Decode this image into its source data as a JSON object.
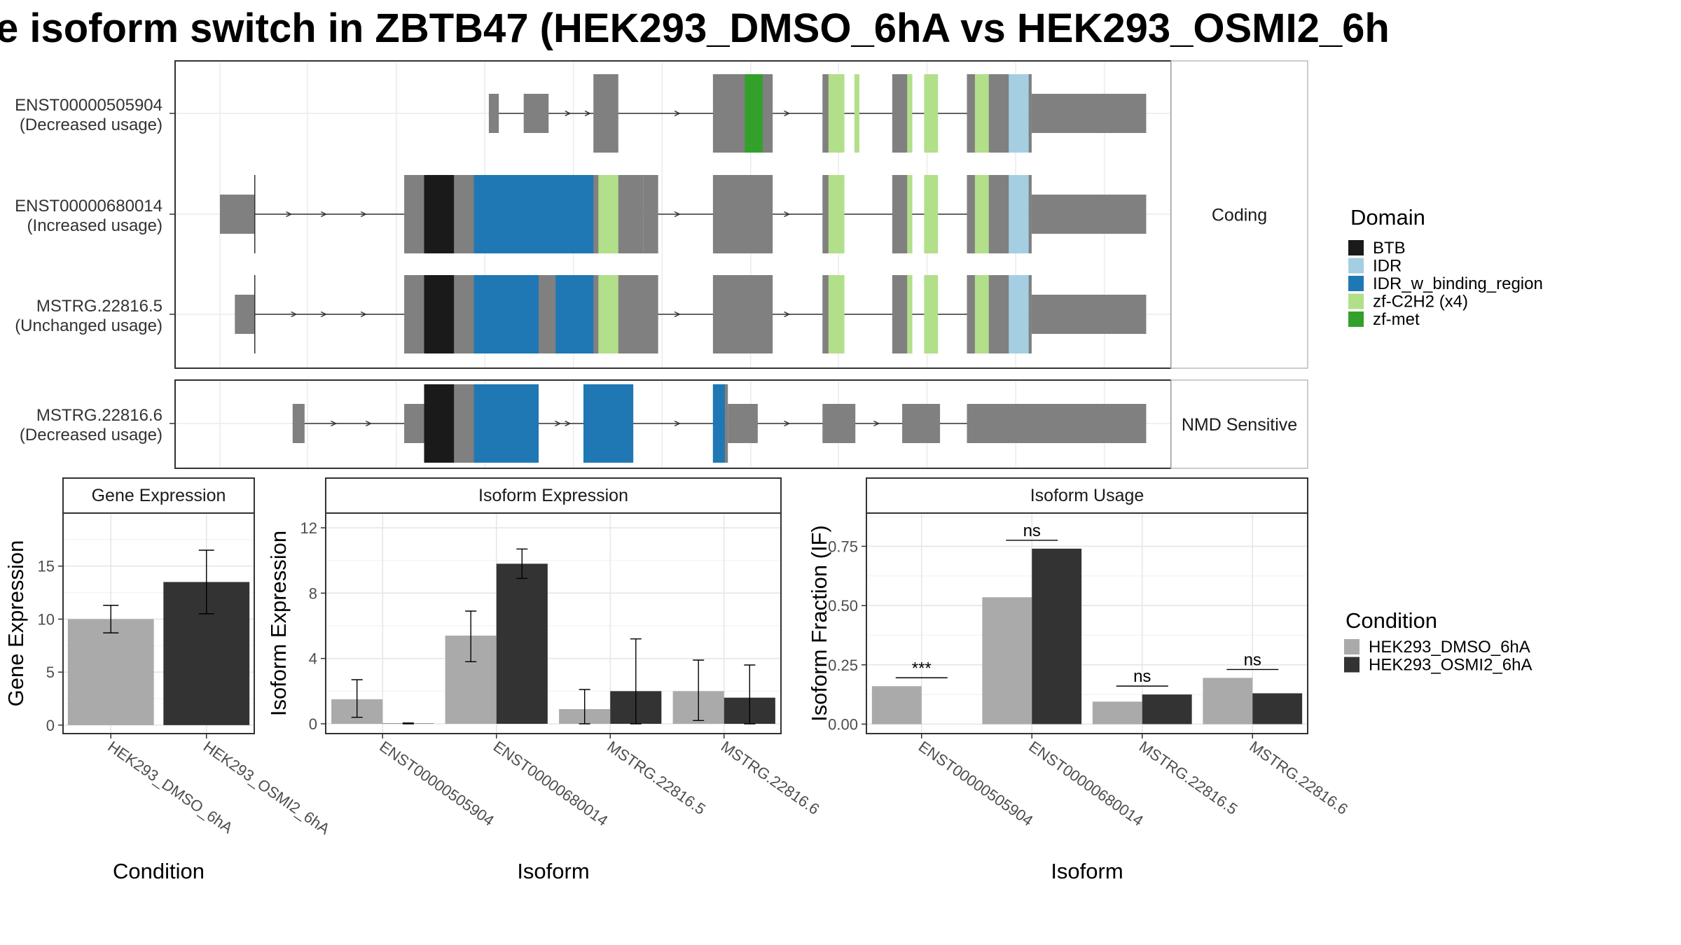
{
  "title": "e isoform switch in ZBTB47 (HEK293_DMSO_6hA vs HEK293_OSMI2_6h",
  "colors": {
    "exon": "#808080",
    "BTB": "#1a1a1a",
    "IDR": "#a6cee3",
    "IDR_w_binding_region": "#1f78b4",
    "zf-C2H2 (x4)": "#b2df8a",
    "zf-met": "#33a02c",
    "HEK293_DMSO_6hA": "#aaaaaa",
    "HEK293_OSMI2_6hA": "#333333"
  },
  "structure": {
    "xlim": [
      0,
      100
    ],
    "facets": [
      {
        "label": "Coding",
        "isoforms": [
          {
            "id": "ENST00000505904",
            "usage": "(Decreased usage)",
            "exons": [
              [
                31.5,
                32.5,
                "utr"
              ],
              [
                35,
                37.5,
                "utr"
              ],
              [
                42,
                44.5,
                "cds"
              ],
              [
                54,
                60,
                "cds"
              ],
              [
                65,
                66.5,
                "cds"
              ],
              [
                72,
                74,
                "cds"
              ],
              [
                79.5,
                81,
                "cds"
              ],
              [
                81,
                86,
                "cds"
              ],
              [
                86,
                97.5,
                "utr"
              ]
            ],
            "domains": [
              [
                57.2,
                59,
                "zf-met"
              ],
              [
                65.6,
                67.2,
                "zf-C2H2 (x4)"
              ],
              [
                68.2,
                68.7,
                "zf-C2H2 (x4)"
              ],
              [
                73.5,
                74,
                "zf-C2H2 (x4)"
              ],
              [
                75.2,
                76.6,
                "zf-C2H2 (x4)"
              ],
              [
                80.3,
                81.7,
                "zf-C2H2 (x4)"
              ],
              [
                83.7,
                85.7,
                "IDR"
              ]
            ],
            "arrows": [
              39.5,
              41.5,
              50.5,
              61.5
            ],
            "intron_tail": 36.5
          },
          {
            "id": "ENST00000680014",
            "usage": "(Increased usage)",
            "exons": [
              [
                4.5,
                8,
                "utr"
              ],
              [
                23,
                47,
                "cds"
              ],
              [
                47,
                48.5,
                "cds"
              ],
              [
                54,
                60,
                "cds"
              ],
              [
                65,
                66.5,
                "cds"
              ],
              [
                72,
                74,
                "cds"
              ],
              [
                79.5,
                81,
                "cds"
              ],
              [
                81,
                86,
                "cds"
              ],
              [
                86,
                97.5,
                "utr"
              ]
            ],
            "domains": [
              [
                25,
                28,
                "BTB"
              ],
              [
                30,
                42,
                "IDR_w_binding_region"
              ],
              [
                42.5,
                44.5,
                "zf-C2H2 (x4)"
              ],
              [
                65.6,
                67.2,
                "zf-C2H2 (x4)"
              ],
              [
                73.5,
                74,
                "zf-C2H2 (x4)"
              ],
              [
                75.2,
                76.6,
                "zf-C2H2 (x4)"
              ],
              [
                80.3,
                81.7,
                "zf-C2H2 (x4)"
              ],
              [
                83.7,
                85.7,
                "IDR"
              ]
            ],
            "arrows": [
              11.5,
              15,
              19,
              50.5,
              61.5
            ],
            "tss": 8
          },
          {
            "id": "MSTRG.22816.5",
            "usage": "(Unchanged usage)",
            "exons": [
              [
                6,
                8,
                "utr"
              ],
              [
                23,
                48.5,
                "cds"
              ],
              [
                54,
                60,
                "cds"
              ],
              [
                65,
                66.5,
                "cds"
              ],
              [
                72,
                74,
                "cds"
              ],
              [
                79.5,
                81,
                "cds"
              ],
              [
                81,
                86,
                "cds"
              ],
              [
                86,
                97.5,
                "utr"
              ]
            ],
            "domains": [
              [
                25,
                28,
                "BTB"
              ],
              [
                30,
                36.5,
                "IDR_w_binding_region"
              ],
              [
                38.2,
                42,
                "IDR_w_binding_region"
              ],
              [
                42.5,
                44.5,
                "zf-C2H2 (x4)"
              ],
              [
                65.6,
                67.2,
                "zf-C2H2 (x4)"
              ],
              [
                73.5,
                74,
                "zf-C2H2 (x4)"
              ],
              [
                75.2,
                76.6,
                "zf-C2H2 (x4)"
              ],
              [
                80.3,
                81.7,
                "zf-C2H2 (x4)"
              ],
              [
                83.7,
                85.7,
                "IDR"
              ]
            ],
            "arrows": [
              12,
              15,
              19,
              50.5,
              61.5
            ],
            "tss": 8
          }
        ]
      },
      {
        "label": "NMD Sensitive",
        "isoforms": [
          {
            "id": "MSTRG.22816.6",
            "usage": "(Decreased usage)",
            "exons": [
              [
                11.8,
                13,
                "utr"
              ],
              [
                23,
                25,
                "utr"
              ],
              [
                25,
                36.5,
                "cds"
              ],
              [
                41,
                46,
                "cds"
              ],
              [
                54,
                55.5,
                "cds"
              ],
              [
                55.5,
                58.5,
                "utr"
              ],
              [
                65,
                68.3,
                "utr"
              ],
              [
                73,
                76.8,
                "utr"
              ],
              [
                79.5,
                97.5,
                "utr"
              ]
            ],
            "domains": [
              [
                25,
                28,
                "BTB"
              ],
              [
                30,
                36.5,
                "IDR_w_binding_region"
              ],
              [
                41,
                46,
                "IDR_w_binding_region"
              ],
              [
                54,
                55.2,
                "IDR_w_binding_region"
              ]
            ],
            "arrows": [
              16,
              19.5,
              38.5,
              39.5,
              50.5,
              61.5,
              70.5
            ]
          }
        ]
      }
    ]
  },
  "legend_domain": {
    "title": "Domain",
    "items": [
      "BTB",
      "IDR",
      "IDR_w_binding_region",
      "zf-C2H2 (x4)",
      "zf-met"
    ]
  },
  "legend_condition": {
    "title": "Condition",
    "items": [
      "HEK293_DMSO_6hA",
      "HEK293_OSMI2_6hA"
    ]
  },
  "chart_data": [
    {
      "type": "bar",
      "title": "Gene Expression",
      "xlabel": "Condition",
      "ylabel": "Gene Expression",
      "categories": [
        "HEK293_DMSO_6hA",
        "HEK293_OSMI2_6hA"
      ],
      "values": [
        10.0,
        13.5
      ],
      "errors": [
        [
          8.7,
          11.3
        ],
        [
          10.5,
          16.5
        ]
      ],
      "ylim": [
        -0.8,
        20
      ],
      "yticks": [
        0,
        5,
        10,
        15
      ]
    },
    {
      "type": "bar",
      "title": "Isoform Expression",
      "xlabel": "Isoform",
      "ylabel": "Isoform Expression",
      "categories": [
        "ENST00000505904",
        "ENST00000680014",
        "MSTRG.22816.5",
        "MSTRG.22816.6"
      ],
      "series": [
        {
          "name": "HEK293_DMSO_6hA",
          "values": [
            1.5,
            5.4,
            0.9,
            2.0
          ],
          "errors": [
            [
              0.4,
              2.7
            ],
            [
              3.8,
              6.9
            ],
            [
              0.0,
              2.1
            ],
            [
              0.2,
              3.9
            ]
          ]
        },
        {
          "name": "HEK293_OSMI2_6hA",
          "values": [
            0.02,
            9.8,
            2.0,
            1.6
          ],
          "errors": [
            [
              0.0,
              0.05
            ],
            [
              8.9,
              10.7
            ],
            [
              0.0,
              5.2
            ],
            [
              0.0,
              3.6
            ]
          ]
        }
      ],
      "ylim": [
        -0.6,
        12.9
      ],
      "yticks": [
        0,
        4,
        8,
        12
      ]
    },
    {
      "type": "bar",
      "title": "Isoform Usage",
      "xlabel": "Isoform",
      "ylabel": "Isoform Fraction (IF)",
      "categories": [
        "ENST00000505904",
        "ENST00000680014",
        "MSTRG.22816.5",
        "MSTRG.22816.6"
      ],
      "series": [
        {
          "name": "HEK293_DMSO_6hA",
          "values": [
            0.16,
            0.535,
            0.095,
            0.195
          ]
        },
        {
          "name": "HEK293_OSMI2_6hA",
          "values": [
            0.0,
            0.74,
            0.125,
            0.13
          ]
        }
      ],
      "significance": [
        "***",
        "ns",
        "ns",
        "ns"
      ],
      "ylim": [
        -0.04,
        0.89
      ],
      "yticks": [
        0.0,
        0.25,
        0.5,
        0.75
      ],
      "ytick_labels": [
        "0.00",
        "0.25",
        "0.50",
        "0.75"
      ]
    }
  ]
}
